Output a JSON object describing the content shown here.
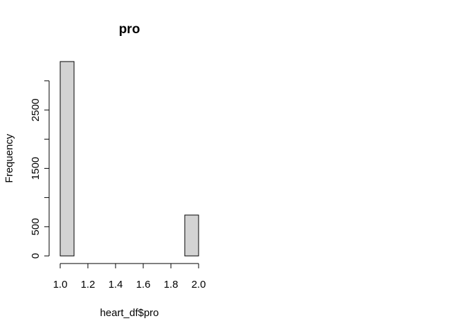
{
  "chart_data": {
    "type": "bar",
    "title": "pro",
    "xlabel": "heart_df$pro",
    "ylabel": "Frequency",
    "bins": [
      {
        "x0": 1.0,
        "x1": 1.1,
        "count": 3330
      },
      {
        "x0": 1.1,
        "x1": 1.2,
        "count": 0
      },
      {
        "x0": 1.2,
        "x1": 1.3,
        "count": 0
      },
      {
        "x0": 1.3,
        "x1": 1.4,
        "count": 0
      },
      {
        "x0": 1.4,
        "x1": 1.5,
        "count": 0
      },
      {
        "x0": 1.5,
        "x1": 1.6,
        "count": 0
      },
      {
        "x0": 1.6,
        "x1": 1.7,
        "count": 0
      },
      {
        "x0": 1.7,
        "x1": 1.8,
        "count": 0
      },
      {
        "x0": 1.8,
        "x1": 1.9,
        "count": 0
      },
      {
        "x0": 1.9,
        "x1": 2.0,
        "count": 700
      }
    ],
    "xlim": [
      1.0,
      2.0
    ],
    "ylim": [
      0,
      3330
    ],
    "x_ticks": [
      1.0,
      1.2,
      1.4,
      1.6,
      1.8,
      2.0
    ],
    "x_tick_labels": [
      "1.0",
      "1.2",
      "1.4",
      "1.6",
      "1.8",
      "2.0"
    ],
    "y_ticks": [
      0,
      500,
      1000,
      1500,
      2000,
      2500,
      3000
    ],
    "y_tick_labels": [
      "0",
      "500",
      "",
      "1500",
      "",
      "2500",
      ""
    ],
    "bar_fill": "#d3d3d3",
    "bar_stroke": "#000000",
    "grid": false
  }
}
